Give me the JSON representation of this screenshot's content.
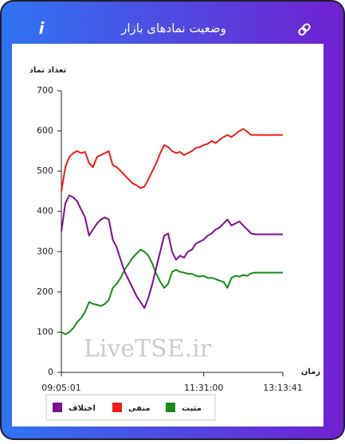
{
  "header": {
    "title": "وضعیت نمادهای بازار",
    "info_icon": "i"
  },
  "chart_data": {
    "type": "line",
    "y_label": "تعداد نماد",
    "x_label": "زمان",
    "watermark": "LiveTSE.ir",
    "categories": [
      "09:05:01",
      null,
      null,
      null,
      null,
      null,
      null,
      null,
      null,
      null,
      null,
      null,
      null,
      null,
      null,
      null,
      null,
      null,
      null,
      null,
      null,
      null,
      null,
      null,
      null,
      null,
      null,
      null,
      null,
      null,
      null,
      null,
      null,
      null,
      null,
      null,
      "11:31:00",
      null,
      null,
      null,
      null,
      null,
      null,
      null,
      null,
      null,
      null,
      null,
      null,
      null,
      null,
      null,
      null,
      null,
      null,
      null,
      "13:13:41"
    ],
    "ylim": [
      0,
      700
    ],
    "yticks": [
      0,
      100,
      200,
      300,
      400,
      500,
      600,
      700
    ],
    "grid": false,
    "series": [
      {
        "name": "مثبت",
        "color": "#1a8a1a",
        "values": [
          100,
          95,
          100,
          110,
          125,
          135,
          150,
          175,
          170,
          168,
          165,
          170,
          180,
          210,
          220,
          235,
          255,
          270,
          285,
          295,
          305,
          300,
          290,
          270,
          245,
          225,
          210,
          220,
          250,
          255,
          250,
          248,
          245,
          245,
          240,
          238,
          240,
          235,
          235,
          232,
          228,
          225,
          210,
          235,
          240,
          238,
          242,
          240,
          246,
          248,
          248,
          248,
          248,
          248,
          248,
          248,
          248
        ]
      },
      {
        "name": "منفی",
        "color": "#f01a1a",
        "values": [
          450,
          510,
          535,
          545,
          550,
          545,
          548,
          520,
          510,
          535,
          540,
          545,
          550,
          515,
          510,
          500,
          490,
          480,
          470,
          465,
          458,
          462,
          480,
          500,
          520,
          545,
          565,
          560,
          550,
          545,
          548,
          540,
          545,
          550,
          558,
          560,
          565,
          568,
          575,
          570,
          578,
          585,
          590,
          585,
          592,
          600,
          605,
          598,
          590,
          590,
          590,
          590,
          590,
          590,
          590,
          590,
          590
        ]
      },
      {
        "name": "اختلاف",
        "color": "#7a0f8f",
        "values": [
          350,
          420,
          440,
          435,
          425,
          405,
          385,
          340,
          355,
          370,
          380,
          385,
          380,
          330,
          310,
          280,
          250,
          230,
          210,
          190,
          175,
          160,
          185,
          220,
          260,
          300,
          340,
          345,
          300,
          280,
          290,
          285,
          300,
          305,
          320,
          325,
          330,
          340,
          345,
          355,
          360,
          370,
          380,
          365,
          370,
          375,
          365,
          355,
          345,
          343,
          343,
          343,
          343,
          343,
          343,
          343,
          343
        ]
      }
    ]
  }
}
